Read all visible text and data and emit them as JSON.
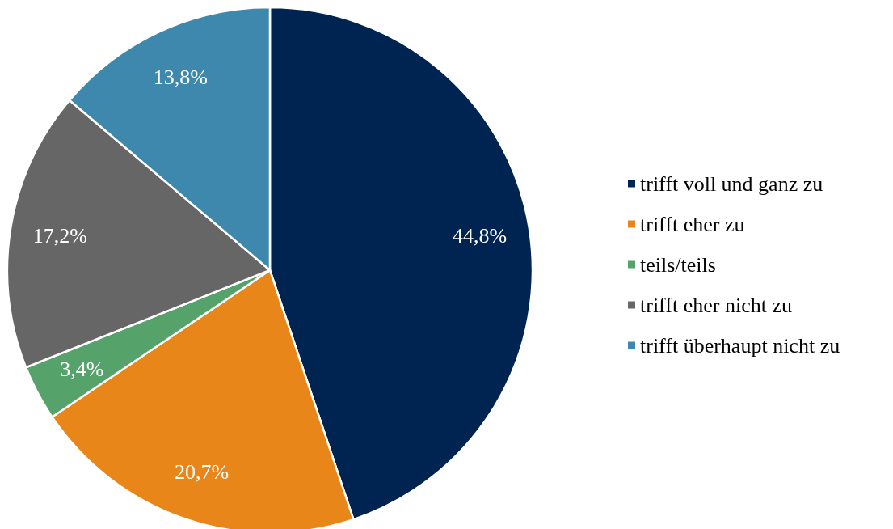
{
  "chart_data": {
    "type": "pie",
    "categories": [
      "trifft voll und ganz zu",
      "trifft eher zu",
      "teils/teils",
      "trifft eher nicht zu",
      "trifft überhaupt nicht zu"
    ],
    "values": [
      44.8,
      20.7,
      3.4,
      17.2,
      13.8
    ],
    "value_labels": [
      "44,8%",
      "20,7%",
      "3,4%",
      "17,2%",
      "13,8%"
    ],
    "colors": [
      "#002451",
      "#e8861a",
      "#55a36b",
      "#666666",
      "#3e88ae"
    ],
    "legend": "right"
  }
}
